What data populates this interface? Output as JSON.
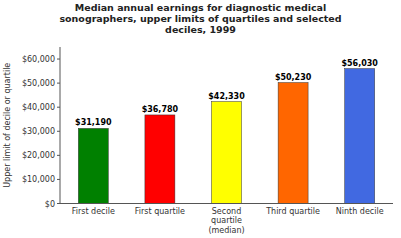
{
  "chart_data": {
    "type": "bar",
    "title": "Median annual earnings for diagnostic medical\nsonographers, upper limits of quartiles and selected\ndeciles, 1999",
    "ylabel": "Upper limit of decile or quartile",
    "categories": [
      "First decile",
      "First quartile",
      "Second\nquartile\n(median)",
      "Third quartile",
      "Ninth decile"
    ],
    "values": [
      31190,
      36780,
      42330,
      50230,
      56030
    ],
    "value_labels": [
      "$31,190",
      "$36,780",
      "$42,330",
      "$50,230",
      "$56,030"
    ],
    "data_labels": true,
    "colors": [
      "#008000",
      "#ff0000",
      "#ffff00",
      "#ff6600",
      "#4169e1"
    ],
    "ylim": [
      0,
      65000
    ],
    "yticks": [
      {
        "value": 0,
        "label": "$0"
      },
      {
        "value": 10000,
        "label": "$10,000"
      },
      {
        "value": 20000,
        "label": "$20,000"
      },
      {
        "value": 30000,
        "label": "$30,000"
      },
      {
        "value": 40000,
        "label": "$40,000"
      },
      {
        "value": 50000,
        "label": "$50,000"
      },
      {
        "value": 60000,
        "label": "$60,000"
      }
    ],
    "grid": false
  }
}
